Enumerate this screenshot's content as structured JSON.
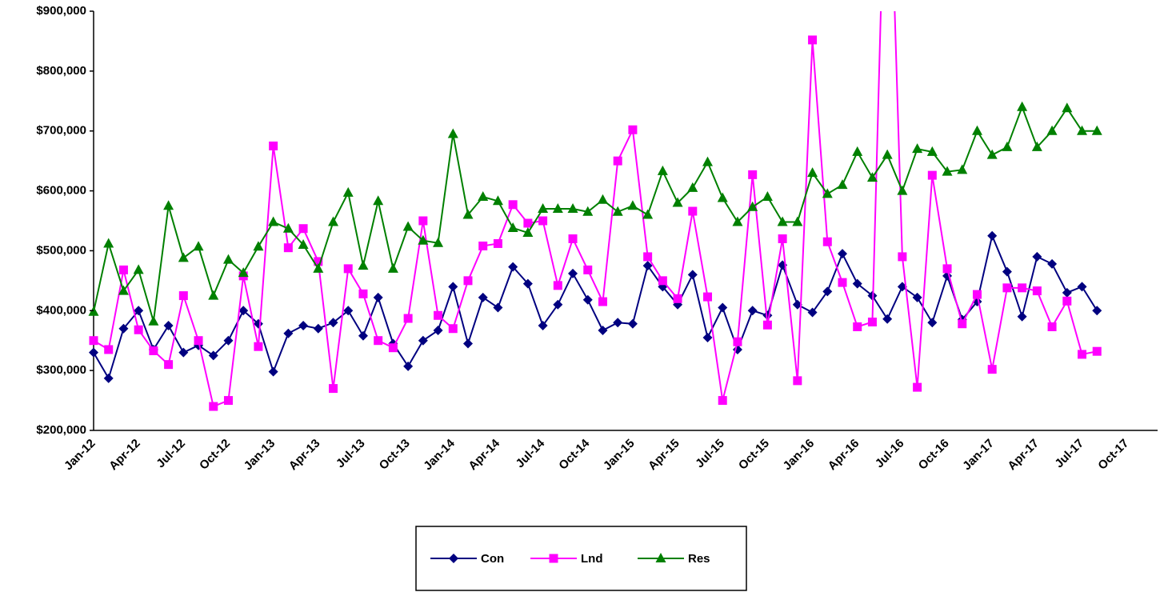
{
  "chart_data": {
    "type": "line",
    "categories": [
      "Jan-12",
      null,
      null,
      "Apr-12",
      null,
      null,
      "Jul-12",
      null,
      null,
      "Oct-12",
      null,
      null,
      "Jan-13",
      null,
      null,
      "Apr-13",
      null,
      null,
      "Jul-13",
      null,
      null,
      "Oct-13",
      null,
      null,
      "Jan-14",
      null,
      null,
      "Apr-14",
      null,
      null,
      "Jul-14",
      null,
      null,
      "Oct-14",
      null,
      null,
      "Jan-15",
      null,
      null,
      "Apr-15",
      null,
      null,
      "Jul-15",
      null,
      null,
      "Oct-15",
      null,
      null,
      "Jan-16",
      null,
      null,
      "Apr-16",
      null,
      null,
      "Jul-16",
      null,
      null,
      "Oct-16",
      null,
      null,
      "Jan-17",
      null,
      null,
      "Apr-17",
      null,
      null,
      "Jul-17",
      null,
      null,
      "Oct-17"
    ],
    "series": [
      {
        "name": "Con",
        "color": "#000080",
        "marker": "diamond",
        "values": [
          330000,
          287000,
          370000,
          400000,
          335000,
          375000,
          330000,
          342000,
          325000,
          350000,
          400000,
          378000,
          298000,
          362000,
          375000,
          370000,
          380000,
          400000,
          358000,
          422000,
          345000,
          307000,
          350000,
          367000,
          440000,
          345000,
          422000,
          405000,
          473000,
          445000,
          375000,
          410000,
          462000,
          418000,
          367000,
          380000,
          378000,
          475000,
          440000,
          410000,
          460000,
          355000,
          405000,
          335000,
          400000,
          392000,
          476000,
          410000,
          397000,
          432000,
          495000,
          445000,
          425000,
          386000,
          440000,
          422000,
          380000,
          458000,
          385000,
          415000,
          525000,
          465000,
          390000,
          490000,
          478000,
          430000,
          440000,
          400000,
          null,
          null
        ]
      },
      {
        "name": "Lnd",
        "color": "#ff00ff",
        "marker": "square",
        "values": [
          350000,
          335000,
          468000,
          368000,
          333000,
          310000,
          425000,
          350000,
          240000,
          250000,
          458000,
          340000,
          675000,
          505000,
          537000,
          482000,
          270000,
          470000,
          428000,
          350000,
          338000,
          387000,
          550000,
          392000,
          370000,
          450000,
          508000,
          512000,
          577000,
          546000,
          550000,
          442000,
          520000,
          468000,
          415000,
          650000,
          702000,
          490000,
          450000,
          420000,
          566000,
          423000,
          250000,
          348000,
          627000,
          376000,
          520000,
          283000,
          852000,
          515000,
          447000,
          373000,
          381000,
          1300000,
          490000,
          272000,
          626000,
          470000,
          378000,
          427000,
          302000,
          438000,
          438000,
          433000,
          373000,
          416000,
          327000,
          332000,
          null,
          null
        ]
      },
      {
        "name": "Res",
        "color": "#008000",
        "marker": "triangle",
        "values": [
          398000,
          512000,
          433000,
          468000,
          382000,
          575000,
          488000,
          507000,
          425000,
          485000,
          463000,
          507000,
          548000,
          537000,
          510000,
          470000,
          548000,
          597000,
          475000,
          583000,
          470000,
          540000,
          517000,
          513000,
          695000,
          560000,
          590000,
          583000,
          538000,
          530000,
          570000,
          570000,
          570000,
          565000,
          585000,
          565000,
          575000,
          560000,
          633000,
          580000,
          605000,
          648000,
          588000,
          548000,
          573000,
          590000,
          548000,
          548000,
          630000,
          595000,
          610000,
          665000,
          622000,
          660000,
          600000,
          670000,
          665000,
          632000,
          635000,
          700000,
          660000,
          673000,
          740000,
          673000,
          700000,
          738000,
          700000,
          700000,
          null,
          null
        ]
      }
    ],
    "ylim": [
      200000,
      900000
    ],
    "yticks": [
      {
        "value": 200000,
        "label": "$200,000"
      },
      {
        "value": 300000,
        "label": "$300,000"
      },
      {
        "value": 400000,
        "label": "$400,000"
      },
      {
        "value": 500000,
        "label": "$500,000"
      },
      {
        "value": 600000,
        "label": "$600,000"
      },
      {
        "value": 700000,
        "label": "$700,000"
      },
      {
        "value": 800000,
        "label": "$800,000"
      },
      {
        "value": 900000,
        "label": "$900,000"
      }
    ],
    "grid": false,
    "legend": "bottom"
  }
}
